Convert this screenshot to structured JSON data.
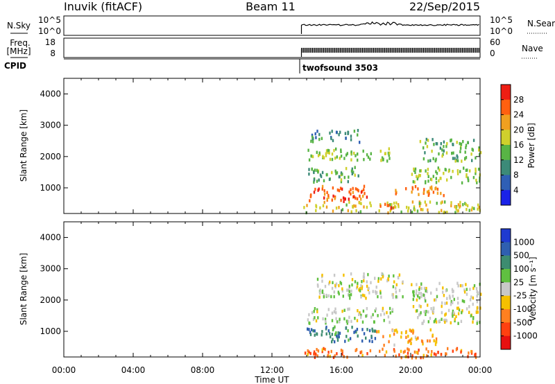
{
  "header": {
    "station": "Inuvik (fitACF)",
    "beam": "Beam 11",
    "date": "22/Sep/2015"
  },
  "strip": {
    "nsky_label": "N.Sky",
    "nsky_ticks": [
      "10^5",
      "10^0"
    ],
    "nsearch_ticks": [
      "10^5",
      "10^0"
    ],
    "nsearch_label": "N.Search",
    "freq_label": "Freq.",
    "freq_unit": "[MHz]",
    "freq_ticks": [
      "18",
      "8"
    ],
    "nave_ticks": [
      "60",
      "0"
    ],
    "nave_label": "Nave",
    "cpid_label": "CPID",
    "cpid_value": "twofsound 3503"
  },
  "panels": {
    "ylabel": "Slant Range [km]",
    "yticks": [
      "1000",
      "2000",
      "3000",
      "4000"
    ],
    "xlabel": "Time UT",
    "xticks": [
      "00:00",
      "04:00",
      "08:00",
      "12:00",
      "16:00",
      "20:00",
      "00:00"
    ]
  },
  "colorbars": {
    "power": {
      "label": "Power [dB]",
      "ticks": [
        "4",
        "8",
        "12",
        "16",
        "20",
        "24",
        "28"
      ],
      "colors": [
        "#1a22e8",
        "#2f5fb5",
        "#3c8a78",
        "#58b445",
        "#cfd02c",
        "#f0a020",
        "#ff6010",
        "#ee1e14"
      ]
    },
    "velocity": {
      "label": "Velocity [m s⁻¹]",
      "ticks": [
        "1000",
        "500",
        "100",
        "25",
        "-25",
        "-100",
        "-500",
        "-1000"
      ],
      "colors": [
        "#1f3ad0",
        "#2f5fb0",
        "#3d8c70",
        "#60c040",
        "#c8c8c8",
        "#f5c000",
        "#ff8020",
        "#ff4010",
        "#e81010"
      ]
    }
  },
  "chart_data": {
    "type": "heatmap",
    "x_range_hours": [
      0,
      24
    ],
    "y_range_km": [
      180,
      4500
    ],
    "data_start_hour": 13.7,
    "power": {
      "colorbar_range_db": [
        0,
        32
      ],
      "bands": [
        {
          "t": [
            13.8,
            24.0
          ],
          "r": [
            250,
            600
          ],
          "value": 18
        },
        {
          "t": [
            14.0,
            17.5
          ],
          "r": [
            600,
            1100
          ],
          "value": 26
        },
        {
          "t": [
            17.8,
            19.0
          ],
          "r": [
            350,
            550
          ],
          "value": 28
        },
        {
          "t": [
            19.0,
            22.0
          ],
          "r": [
            800,
            1100
          ],
          "value": 24
        },
        {
          "t": [
            13.9,
            17.0
          ],
          "r": [
            1200,
            1700
          ],
          "value": 14
        },
        {
          "t": [
            14.0,
            19.0
          ],
          "r": [
            1900,
            2300
          ],
          "value": 16
        },
        {
          "t": [
            14.2,
            17.0
          ],
          "r": [
            2500,
            2900
          ],
          "value": 10
        },
        {
          "t": [
            20.0,
            24.0
          ],
          "r": [
            1200,
            1700
          ],
          "value": 16
        },
        {
          "t": [
            20.5,
            24.0
          ],
          "r": [
            1900,
            2600
          ],
          "value": 14
        }
      ]
    },
    "velocity": {
      "colorbar_range_ms": [
        -1000,
        1000
      ],
      "bands": [
        {
          "t": [
            13.8,
            24.0
          ],
          "r": [
            200,
            500
          ],
          "value": -500
        },
        {
          "t": [
            14.0,
            18.0
          ],
          "r": [
            700,
            1200
          ],
          "value": 500
        },
        {
          "t": [
            18.0,
            21.5
          ],
          "r": [
            600,
            1100
          ],
          "value": -300
        },
        {
          "t": [
            14.0,
            19.0
          ],
          "r": [
            1300,
            1800
          ],
          "value": 100
        },
        {
          "t": [
            14.5,
            19.5
          ],
          "r": [
            2100,
            2900
          ],
          "value": 0
        },
        {
          "t": [
            20.0,
            24.0
          ],
          "r": [
            1300,
            2600
          ],
          "value": 0
        }
      ]
    }
  }
}
